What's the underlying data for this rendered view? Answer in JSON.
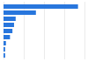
{
  "chart_data": {
    "type": "bar",
    "orientation": "horizontal",
    "categories": [
      null,
      null,
      null,
      null,
      null,
      null,
      null,
      null,
      null
    ],
    "values": [
      92,
      40,
      15,
      13,
      11,
      8,
      3,
      2,
      2
    ],
    "color": "#2876dd",
    "xlim": [
      0,
      100
    ],
    "xticks": [
      0,
      25,
      50,
      75,
      100
    ],
    "grid": true,
    "tick_labels": false
  }
}
